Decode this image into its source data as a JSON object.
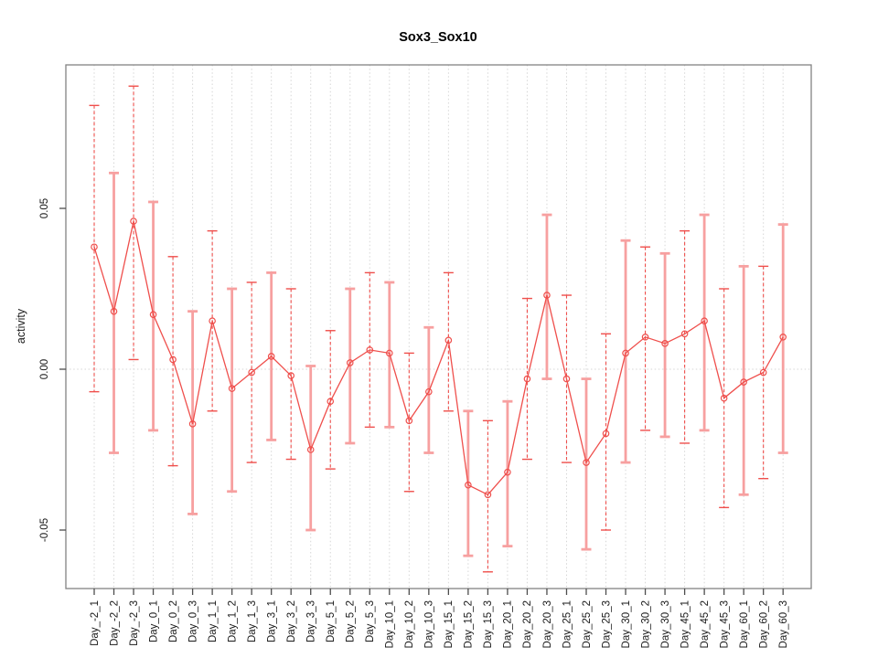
{
  "title": "Sox3_Sox10",
  "ylabel": "activity",
  "chart_data": {
    "type": "line",
    "title": "Sox3_Sox10",
    "xlabel": "",
    "ylabel": "activity",
    "legend": "none",
    "grid": "dotted vertical gridline at every category; dotted horizontal line at y=0",
    "marker": "open-circle",
    "error_bars": true,
    "ylim": [
      -0.068,
      0.092
    ],
    "yticks": [
      -0.05,
      0,
      0.05
    ],
    "ytick_labels": [
      "-0.05",
      "0.00",
      "0.05"
    ],
    "categories": [
      "Day_-2_1",
      "Day_-2_2",
      "Day_-2_3",
      "Day_0_1",
      "Day_0_2",
      "Day_0_3",
      "Day_1_1",
      "Day_1_2",
      "Day_1_3",
      "Day_3_1",
      "Day_3_2",
      "Day_3_3",
      "Day_5_1",
      "Day_5_2",
      "Day_5_3",
      "Day_10_1",
      "Day_10_2",
      "Day_10_3",
      "Day_15_1",
      "Day_15_2",
      "Day_15_3",
      "Day_20_1",
      "Day_20_2",
      "Day_20_3",
      "Day_25_1",
      "Day_25_2",
      "Day_25_3",
      "Day_30_1",
      "Day_30_2",
      "Day_30_3",
      "Day_45_1",
      "Day_45_2",
      "Day_45_3",
      "Day_60_1",
      "Day_60_2",
      "Day_60_3"
    ],
    "series": [
      {
        "name": "activity",
        "values": [
          0.038,
          0.018,
          0.046,
          0.017,
          0.003,
          -0.017,
          0.015,
          -0.006,
          -0.001,
          0.004,
          -0.002,
          -0.025,
          -0.01,
          0.002,
          0.006,
          0.005,
          -0.016,
          -0.007,
          0.009,
          -0.036,
          -0.039,
          -0.032,
          -0.003,
          0.023,
          -0.003,
          -0.029,
          -0.02,
          0.005,
          0.01,
          0.008,
          0.011,
          0.015,
          -0.009,
          -0.004,
          -0.001,
          0.01
        ],
        "error_high": [
          0.082,
          0.061,
          0.088,
          0.052,
          0.035,
          0.018,
          0.043,
          0.025,
          0.027,
          0.03,
          0.025,
          0.001,
          0.012,
          0.025,
          0.03,
          0.027,
          0.005,
          0.013,
          0.03,
          -0.013,
          -0.016,
          -0.01,
          0.022,
          0.048,
          0.023,
          -0.003,
          0.011,
          0.04,
          0.038,
          0.036,
          0.043,
          0.048,
          0.025,
          0.032,
          0.032,
          0.045
        ],
        "error_low": [
          -0.007,
          -0.026,
          0.003,
          -0.019,
          -0.03,
          -0.045,
          -0.013,
          -0.038,
          -0.029,
          -0.022,
          -0.028,
          -0.05,
          -0.031,
          -0.023,
          -0.018,
          -0.018,
          -0.038,
          -0.026,
          -0.013,
          -0.058,
          -0.063,
          -0.055,
          -0.028,
          -0.003,
          -0.029,
          -0.056,
          -0.05,
          -0.029,
          -0.019,
          -0.021,
          -0.023,
          -0.019,
          -0.043,
          -0.039,
          -0.034,
          -0.026
        ]
      }
    ],
    "colors": {
      "series_line": "#ef4f4c",
      "error_bar_solid": "#f7a0a0",
      "gridline": "#d6d6d6",
      "axis_box": "#828282",
      "tick": "#4d4d4d",
      "text": "#1a1a1a",
      "title_text": "#000000"
    }
  }
}
